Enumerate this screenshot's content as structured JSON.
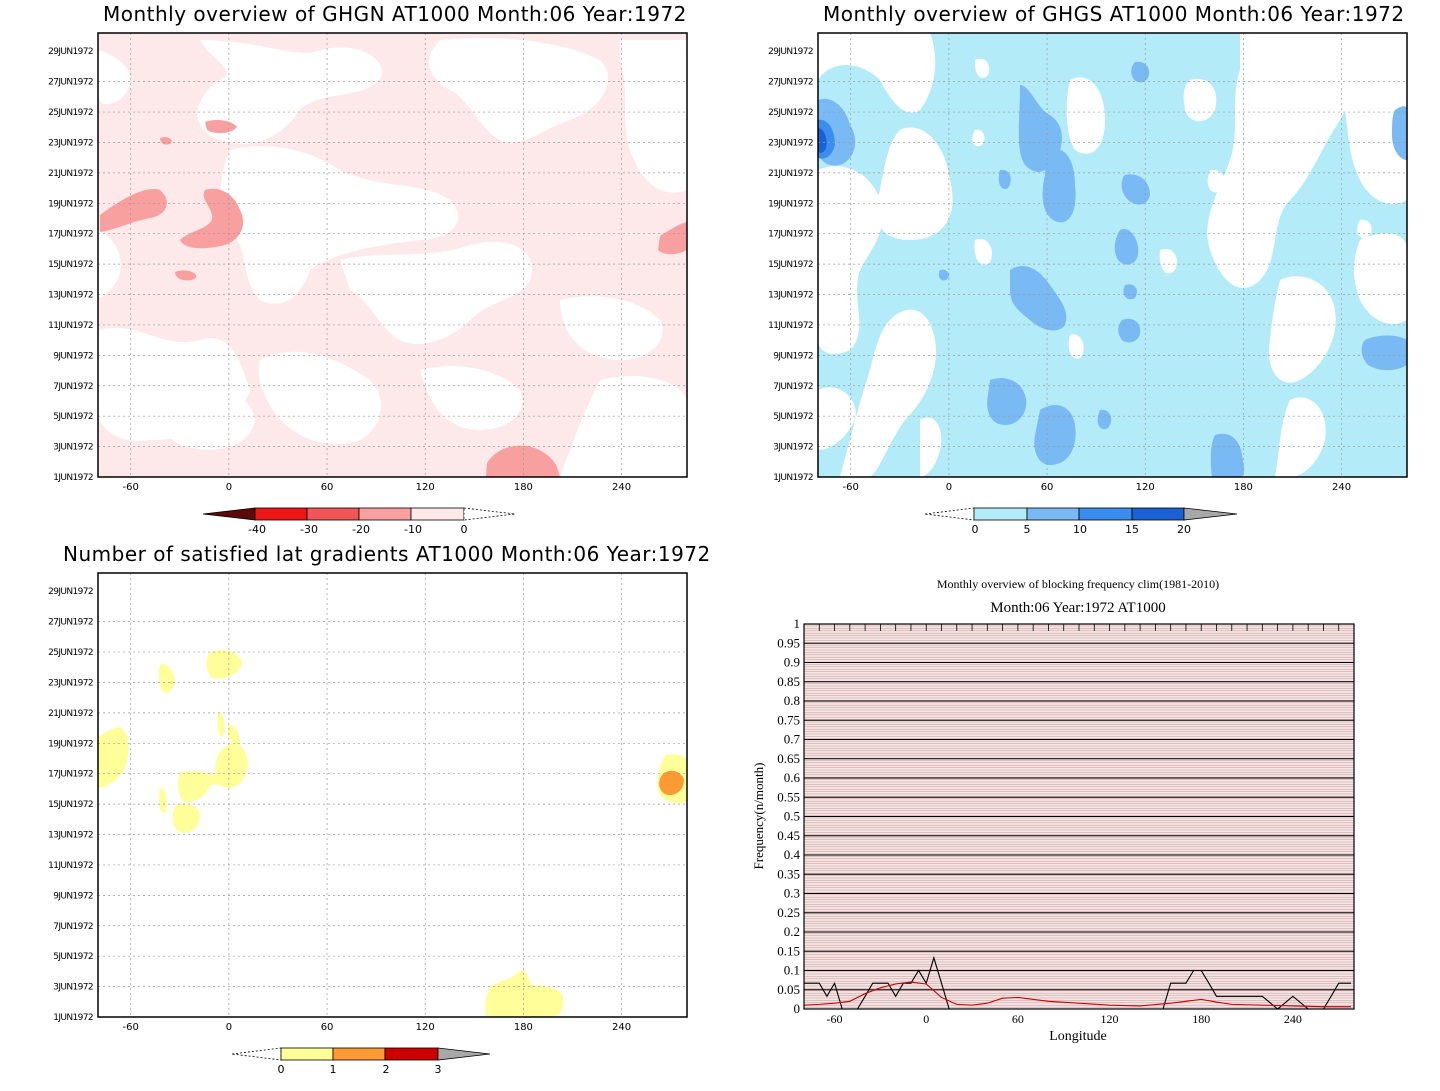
{
  "panels": {
    "ghgn": {
      "title": "Monthly overview of GHGN AT1000 Month:06 Year:1972"
    },
    "ghgs": {
      "title": "Monthly overview of GHGS AT1000 Month:06 Year:1972"
    },
    "lat": {
      "title": "Number of satisfied lat gradients AT1000 Month:06 Year:1972"
    },
    "freq": {
      "title": "Monthly overview of blocking frequency clim(1981-2010)",
      "subtitle": "Month:06 Year:1972  AT1000"
    }
  },
  "date_ticks": [
    "29JUN1972",
    "27JUN1972",
    "25JUN1972",
    "23JUN1972",
    "21JUN1972",
    "19JUN1972",
    "17JUN1972",
    "15JUN1972",
    "13JUN1972",
    "11JUN1972",
    "9JUN1972",
    "7JUN1972",
    "5JUN1972",
    "3JUN1972",
    "1JUN1972"
  ],
  "lon_ticks": [
    "-60",
    "0",
    "60",
    "120",
    "180",
    "240"
  ],
  "colors": {
    "ghgn_scale": [
      "#5a0a0a",
      "#ee1515",
      "#f25555",
      "#f8a0a0",
      "#fde9e9"
    ],
    "ghgs_scale": [
      "#b3ecf8",
      "#79b9f4",
      "#3a8ef0",
      "#1a62d4",
      "#a8a8a8"
    ],
    "lat_scale": [
      "#fffe99",
      "#fe9a33",
      "#cc0000",
      "#a8a8a8"
    ]
  },
  "colorbars": {
    "ghgn": [
      "-40",
      "-30",
      "-20",
      "-10",
      "0"
    ],
    "ghgs": [
      "0",
      "5",
      "10",
      "15",
      "20"
    ],
    "lat": [
      "0",
      "1",
      "2",
      "3"
    ]
  },
  "chart_data": [
    {
      "type": "heatmap",
      "title": "Monthly overview of GHGN AT1000 Month:06 Year:1972",
      "x_ticks": [
        -60,
        0,
        60,
        120,
        180,
        240
      ],
      "xlim": [
        -80,
        280
      ],
      "y_ticks": [
        "1JUN1972",
        "3JUN1972",
        "5JUN1972",
        "7JUN1972",
        "9JUN1972",
        "11JUN1972",
        "13JUN1972",
        "15JUN1972",
        "17JUN1972",
        "19JUN1972",
        "21JUN1972",
        "23JUN1972",
        "25JUN1972",
        "27JUN1972",
        "29JUN1972"
      ],
      "levels": [
        -40,
        -30,
        -20,
        -10,
        0
      ],
      "grid": true
    },
    {
      "type": "heatmap",
      "title": "Monthly overview of GHGS AT1000 Month:06 Year:1972",
      "x_ticks": [
        -60,
        0,
        60,
        120,
        180,
        240
      ],
      "xlim": [
        -80,
        280
      ],
      "levels": [
        0,
        5,
        10,
        15,
        20
      ],
      "grid": true
    },
    {
      "type": "heatmap",
      "title": "Number of satisfied lat gradients AT1000 Month:06 Year:1972",
      "x_ticks": [
        -60,
        0,
        60,
        120,
        180,
        240
      ],
      "xlim": [
        -80,
        280
      ],
      "levels": [
        0,
        1,
        2,
        3
      ],
      "grid": true
    },
    {
      "type": "line",
      "title": "Monthly overview of blocking frequency clim(1981-2010)",
      "subtitle": "Month:06 Year:1972  AT1000",
      "xlabel": "Longitude",
      "ylabel": "Frequency(n/month)",
      "xlim": [
        -80,
        280
      ],
      "ylim": [
        0,
        1
      ],
      "x_ticks": [
        -60,
        0,
        60,
        120,
        180,
        240
      ],
      "y_ticks": [
        "0",
        "0.05",
        "0.1",
        "0.15",
        "0.2",
        "0.25",
        "0.3",
        "0.35",
        "0.4",
        "0.45",
        "0.5",
        "0.55",
        "0.6",
        "0.65",
        "0.7",
        "0.75",
        "0.8",
        "0.85",
        "0.9",
        "0.95",
        "1"
      ],
      "series": [
        {
          "color": "#000000",
          "x": [
            -80,
            -70,
            -65,
            -60,
            -55,
            -45,
            -40,
            -35,
            -30,
            -25,
            -20,
            -15,
            -10,
            -5,
            0,
            5,
            10,
            15,
            20,
            60,
            100,
            150,
            155,
            160,
            170,
            175,
            180,
            185,
            190,
            200,
            210,
            220,
            230,
            240,
            250,
            260,
            265,
            270,
            278
          ],
          "y": [
            0.067,
            0.067,
            0.033,
            0.067,
            0,
            0,
            0.033,
            0.067,
            0.067,
            0.067,
            0.033,
            0.067,
            0.067,
            0.1,
            0.067,
            0.133,
            0.067,
            0,
            0,
            0,
            0,
            0,
            0,
            0.067,
            0.067,
            0.1,
            0.1,
            0.067,
            0.033,
            0.033,
            0.033,
            0.033,
            0,
            0.033,
            0,
            0,
            0.033,
            0.067,
            0.067
          ]
        },
        {
          "color": "#cc0000",
          "x": [
            -80,
            -70,
            -60,
            -50,
            -40,
            -30,
            -20,
            -10,
            0,
            10,
            20,
            30,
            40,
            50,
            60,
            80,
            100,
            120,
            140,
            160,
            170,
            180,
            190,
            200,
            220,
            240,
            260,
            278
          ],
          "y": [
            0.01,
            0.012,
            0.015,
            0.02,
            0.04,
            0.055,
            0.065,
            0.07,
            0.065,
            0.03,
            0.012,
            0.01,
            0.015,
            0.028,
            0.03,
            0.02,
            0.015,
            0.01,
            0.008,
            0.015,
            0.02,
            0.025,
            0.018,
            0.012,
            0.01,
            0.008,
            0.006,
            0.006
          ]
        }
      ]
    }
  ],
  "freq_axes": {
    "xlabel": "Longitude",
    "ylabel": "Frequency(n/month)"
  }
}
